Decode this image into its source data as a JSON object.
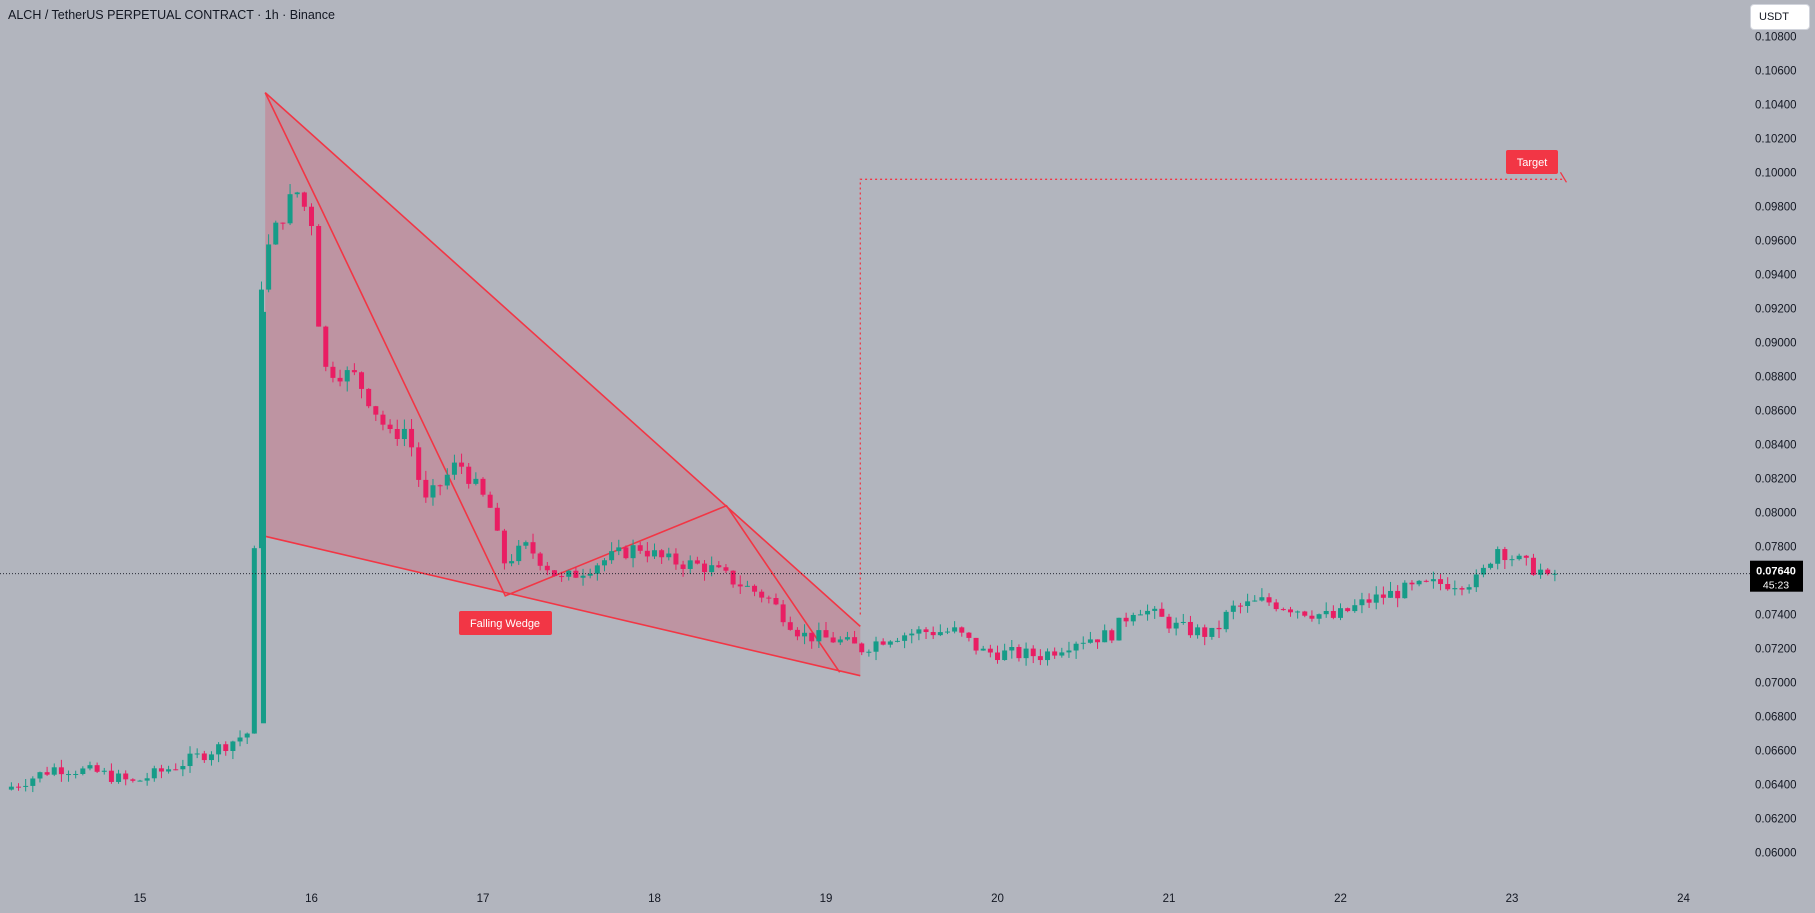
{
  "header": {
    "symbol_title": "ALCH / TetherUS PERPETUAL CONTRACT · 1h · Binance",
    "currency_button": "USDT"
  },
  "price_tag": {
    "price": "0.07640",
    "countdown": "45:23"
  },
  "colors": {
    "background": "#b2b5be",
    "up": "#169c88",
    "down": "#e91e63",
    "pattern_line": "#f23645",
    "pattern_fill": "#c28a98",
    "label_bg": "#f23645",
    "price_tag_bg": "#000000",
    "axis_text": "#131722"
  },
  "annotations": {
    "pattern_label": "Falling Wedge",
    "target_label": "Target",
    "target_price": 0.0996
  },
  "chart_data": {
    "type": "candlestick",
    "title": "ALCH / TetherUS PERPETUAL CONTRACT · 1h · Binance",
    "xlabel": "",
    "ylabel": "",
    "ylim": [
      0.0594,
      0.1082
    ],
    "y_ticks": [
      "0.06000",
      "0.06200",
      "0.06400",
      "0.06600",
      "0.06800",
      "0.07000",
      "0.07200",
      "0.07400",
      "0.07600",
      "0.07800",
      "0.08000",
      "0.08200",
      "0.08400",
      "0.08600",
      "0.08800",
      "0.09000",
      "0.09200",
      "0.09400",
      "0.09600",
      "0.09800",
      "0.10000",
      "0.10200",
      "0.10400",
      "0.10600",
      "0.10800"
    ],
    "x_ticks": [
      "15",
      "16",
      "17",
      "18",
      "19",
      "20",
      "21",
      "22",
      "23",
      "24"
    ],
    "x_tick_days": [
      15,
      16,
      17,
      18,
      19,
      20,
      21,
      22,
      23,
      24
    ],
    "current_price": 0.0764,
    "grid": false,
    "keypoints": [
      [
        14.25,
        0.0637
      ],
      [
        14.55,
        0.065
      ],
      [
        14.8,
        0.0647
      ],
      [
        15.0,
        0.0641
      ],
      [
        15.3,
        0.0653
      ],
      [
        15.55,
        0.0664
      ],
      [
        15.7,
        0.0672
      ],
      [
        15.72,
        0.092
      ],
      [
        15.8,
        0.096
      ],
      [
        15.95,
        0.099
      ],
      [
        16.05,
        0.097
      ],
      [
        16.1,
        0.0885
      ],
      [
        16.3,
        0.088
      ],
      [
        16.5,
        0.0845
      ],
      [
        16.6,
        0.085
      ],
      [
        16.7,
        0.0805
      ],
      [
        16.9,
        0.083
      ],
      [
        17.1,
        0.08
      ],
      [
        17.15,
        0.077
      ],
      [
        17.3,
        0.078
      ],
      [
        17.5,
        0.076
      ],
      [
        17.7,
        0.077
      ],
      [
        17.95,
        0.078
      ],
      [
        18.1,
        0.0772
      ],
      [
        18.35,
        0.0768
      ],
      [
        18.5,
        0.076
      ],
      [
        18.7,
        0.075
      ],
      [
        18.9,
        0.0728
      ],
      [
        19.1,
        0.0725
      ],
      [
        19.25,
        0.072
      ],
      [
        19.4,
        0.0727
      ],
      [
        19.6,
        0.073
      ],
      [
        19.8,
        0.073
      ],
      [
        19.95,
        0.0718
      ],
      [
        20.1,
        0.0717
      ],
      [
        20.3,
        0.0716
      ],
      [
        20.5,
        0.0725
      ],
      [
        20.7,
        0.0728
      ],
      [
        20.85,
        0.0745
      ],
      [
        21.1,
        0.0732
      ],
      [
        21.3,
        0.0728
      ],
      [
        21.4,
        0.0743
      ],
      [
        21.6,
        0.0748
      ],
      [
        21.8,
        0.0743
      ],
      [
        22.0,
        0.0738
      ],
      [
        22.2,
        0.0748
      ],
      [
        22.4,
        0.0754
      ],
      [
        22.6,
        0.0758
      ],
      [
        22.85,
        0.076
      ],
      [
        22.95,
        0.078
      ],
      [
        23.1,
        0.077
      ],
      [
        23.25,
        0.0764
      ]
    ],
    "wedge": {
      "upper_line": [
        [
          15.73,
          0.1047
        ],
        [
          19.2,
          0.0733
        ]
      ],
      "lower_line": [
        [
          15.73,
          0.0786
        ],
        [
          19.2,
          0.0704
        ]
      ],
      "inner_zigzag": [
        [
          15.73,
          0.1047
        ],
        [
          16.05,
          0.098
        ],
        [
          17.13,
          0.0751
        ],
        [
          18.42,
          0.0804
        ],
        [
          19.08,
          0.0706
        ]
      ]
    },
    "target_path": [
      [
        19.2,
        0.074
      ],
      [
        19.2,
        0.0996
      ],
      [
        23.3,
        0.0996
      ]
    ]
  }
}
